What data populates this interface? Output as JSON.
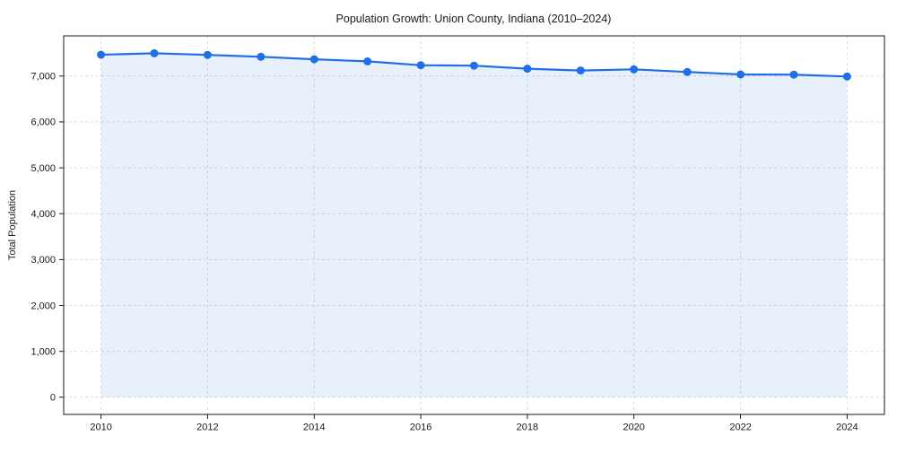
{
  "chart_data": {
    "type": "area",
    "title": "Population Growth: Union County, Indiana (2010–2024)",
    "xlabel": "",
    "ylabel": "Total Population",
    "x": [
      2010,
      2011,
      2012,
      2013,
      2014,
      2015,
      2016,
      2017,
      2018,
      2019,
      2020,
      2021,
      2022,
      2023,
      2024
    ],
    "values": [
      7465,
      7495,
      7460,
      7420,
      7365,
      7320,
      7235,
      7225,
      7160,
      7120,
      7145,
      7090,
      7035,
      7030,
      6990
    ],
    "x_ticks": [
      2010,
      2012,
      2014,
      2016,
      2018,
      2020,
      2022,
      2024
    ],
    "y_ticks": [
      0,
      1000,
      2000,
      3000,
      4000,
      5000,
      6000,
      7000
    ],
    "xlim": [
      2009.3,
      2024.7
    ],
    "ylim": [
      -375,
      7875
    ],
    "grid": true,
    "legend": "none",
    "colors": {
      "line": "#1f6fe6",
      "fill": "rgba(31,111,230,0.10)",
      "grid": "#dcdcdc",
      "axis": "#1a1a1a",
      "text": "#1a1a1a",
      "background": "#ffffff"
    }
  }
}
